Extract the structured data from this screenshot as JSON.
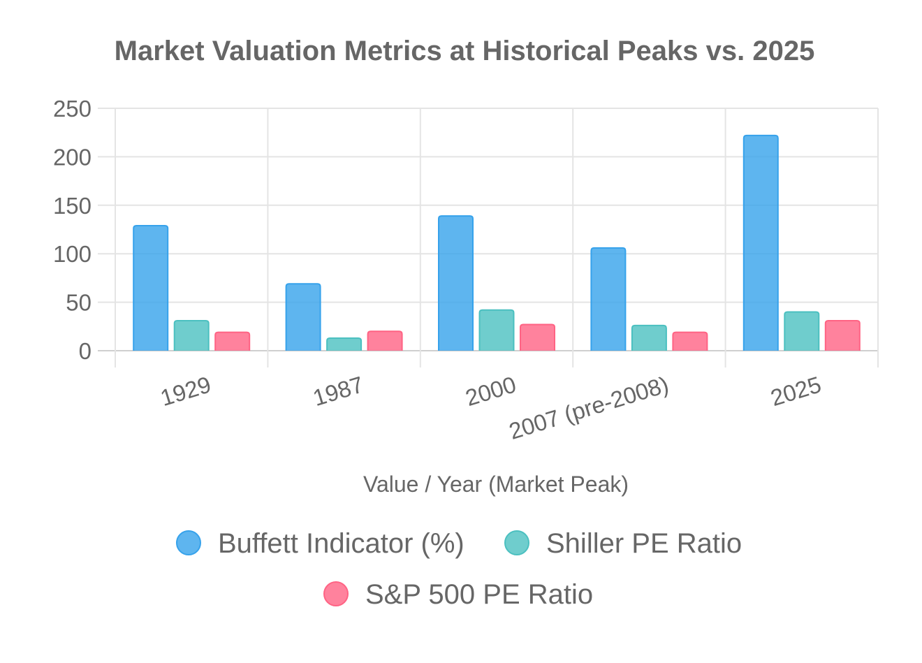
{
  "chart_data": {
    "type": "bar",
    "title": "Market Valuation Metrics at Historical Peaks vs. 2025",
    "xlabel": "Value / Year (Market Peak)",
    "ylabel": "",
    "ylim": [
      0,
      250
    ],
    "yticks": [
      0,
      50,
      100,
      150,
      200,
      250
    ],
    "grid": true,
    "legend_position": "bottom",
    "categories": [
      "1929",
      "1987",
      "2000",
      "2007 (pre-2008)",
      "2025"
    ],
    "series": [
      {
        "name": "Buffett Indicator (%)",
        "values": [
          129,
          69,
          139,
          106,
          222
        ],
        "color": "#36a2eb"
      },
      {
        "name": "Shiller PE Ratio",
        "values": [
          31,
          13,
          42,
          26,
          40
        ],
        "color": "#4bc0c0"
      },
      {
        "name": "S&P 500 PE Ratio",
        "values": [
          19,
          20,
          27,
          19,
          31
        ],
        "color": "#ff6384"
      }
    ]
  }
}
